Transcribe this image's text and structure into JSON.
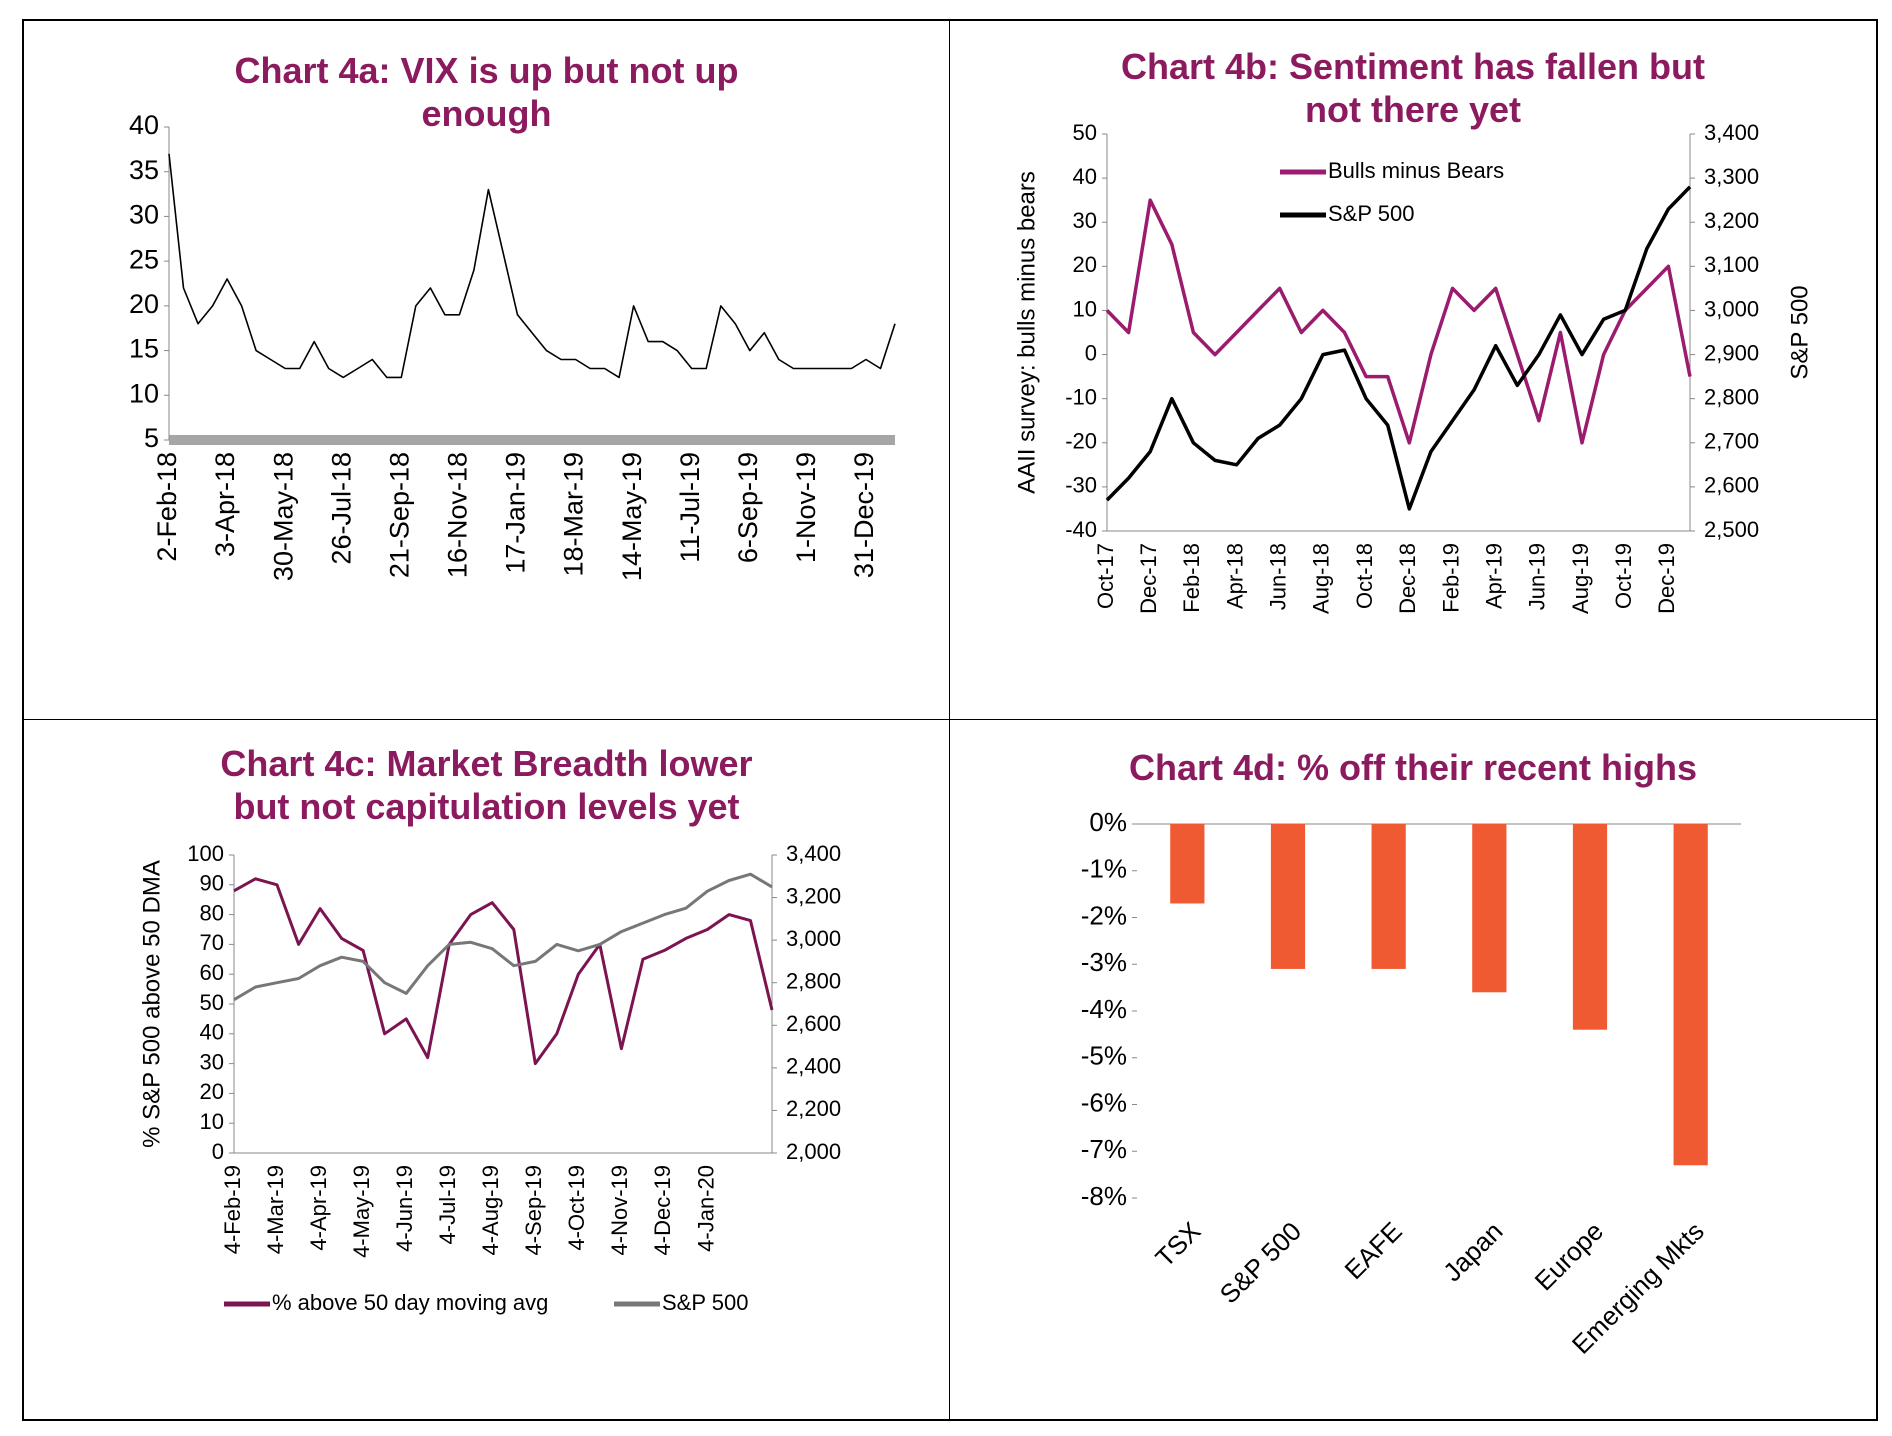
{
  "chart_data": [
    {
      "type": "line",
      "title": "Chart 4a: VIX is up but not up enough",
      "categories": [
        "2-Feb-18",
        null,
        null,
        null,
        "3-Apr-18",
        null,
        null,
        null,
        "30-May-18",
        null,
        null,
        null,
        "26-Jul-18",
        null,
        null,
        null,
        "21-Sep-18",
        null,
        null,
        null,
        "16-Nov-18",
        null,
        null,
        null,
        "17-Jan-19",
        null,
        null,
        null,
        "18-Mar-19",
        null,
        null,
        null,
        "14-May-19",
        null,
        null,
        null,
        "11-Jul-19",
        null,
        null,
        null,
        "6-Sep-19",
        null,
        null,
        null,
        "1-Nov-19",
        null,
        null,
        null,
        "31-Dec-19",
        null,
        null
      ],
      "values": [
        37,
        22,
        18,
        20,
        23,
        20,
        15,
        14,
        13,
        13,
        16,
        13,
        12,
        13,
        14,
        12,
        12,
        20,
        22,
        19,
        19,
        24,
        33,
        26,
        19,
        17,
        15,
        14,
        14,
        13,
        13,
        12,
        20,
        16,
        16,
        15,
        13,
        13,
        20,
        18,
        15,
        17,
        14,
        13,
        13,
        13,
        13,
        13,
        14,
        13,
        18
      ],
      "color": "#000000",
      "ylim": [
        5,
        40
      ],
      "yticks": [
        5,
        10,
        15,
        20,
        25,
        30,
        35,
        40
      ]
    },
    {
      "type": "line",
      "title": "Chart 4b: Sentiment has fallen but not there yet",
      "ylabel": "AAII survey: bulls minus bears",
      "y2label": "S&P 500",
      "categories": [
        "Oct-17",
        null,
        "Dec-17",
        null,
        "Feb-18",
        null,
        "Apr-18",
        null,
        "Jun-18",
        null,
        "Aug-18",
        null,
        "Oct-18",
        null,
        "Dec-18",
        null,
        "Feb-19",
        null,
        "Apr-19",
        null,
        "Jun-19",
        null,
        "Aug-19",
        null,
        "Oct-19",
        null,
        "Dec-19",
        null
      ],
      "series": [
        {
          "name": "Bulls minus Bears",
          "color": "#9b1b6e",
          "values": [
            10,
            5,
            35,
            25,
            5,
            0,
            5,
            10,
            15,
            5,
            10,
            5,
            -5,
            -5,
            -20,
            0,
            15,
            10,
            15,
            0,
            -15,
            5,
            -20,
            0,
            10,
            15,
            20,
            -5
          ]
        },
        {
          "name": "S&P 500",
          "color": "#000000",
          "axis": "y2",
          "values": [
            2570,
            2620,
            2680,
            2800,
            2700,
            2660,
            2650,
            2710,
            2740,
            2800,
            2900,
            2910,
            2800,
            2740,
            2550,
            2680,
            2750,
            2820,
            2920,
            2830,
            2900,
            2990,
            2900,
            2980,
            3000,
            3140,
            3230,
            3280
          ]
        }
      ],
      "ylim": [
        -40,
        50
      ],
      "yticks": [
        -40,
        -30,
        -20,
        -10,
        0,
        10,
        20,
        30,
        40,
        50
      ],
      "y2lim": [
        2500,
        3400
      ],
      "y2ticks": [
        {
          "value": 2500,
          "label": "2,500"
        },
        {
          "value": 2600,
          "label": "2,600"
        },
        {
          "value": 2700,
          "label": "2,700"
        },
        {
          "value": 2800,
          "label": "2,800"
        },
        {
          "value": 2900,
          "label": "2,900"
        },
        {
          "value": 3000,
          "label": "3,000"
        },
        {
          "value": 3100,
          "label": "3,100"
        },
        {
          "value": 3200,
          "label": "3,200"
        },
        {
          "value": 3300,
          "label": "3,300"
        },
        {
          "value": 3400,
          "label": "3,400"
        }
      ],
      "legend": "top"
    },
    {
      "type": "line",
      "title": "Chart 4c: Market Breadth lower but not capitulation levels yet",
      "ylabel": "% S&P 500 above 50 DMA",
      "categories": [
        "4-Feb-19",
        null,
        "4-Mar-19",
        null,
        "4-Apr-19",
        null,
        "4-May-19",
        null,
        "4-Jun-19",
        null,
        "4-Jul-19",
        null,
        "4-Aug-19",
        null,
        "4-Sep-19",
        null,
        "4-Oct-19",
        null,
        "4-Nov-19",
        null,
        "4-Dec-19",
        null,
        "4-Jan-20",
        null,
        null,
        null
      ],
      "series": [
        {
          "name": "% above 50 day moving avg",
          "color": "#7b1450",
          "values": [
            88,
            92,
            90,
            70,
            82,
            72,
            68,
            40,
            45,
            32,
            70,
            80,
            84,
            75,
            30,
            40,
            60,
            70,
            35,
            65,
            68,
            72,
            75,
            80,
            78,
            48
          ]
        },
        {
          "name": "S&P 500",
          "color": "#777777",
          "axis": "y2",
          "values": [
            2720,
            2780,
            2800,
            2820,
            2880,
            2920,
            2900,
            2800,
            2750,
            2880,
            2980,
            2990,
            2960,
            2880,
            2900,
            2980,
            2950,
            2980,
            3040,
            3080,
            3120,
            3150,
            3230,
            3280,
            3310,
            3250
          ]
        }
      ],
      "ylim": [
        0,
        100
      ],
      "yticks": [
        0,
        10,
        20,
        30,
        40,
        50,
        60,
        70,
        80,
        90,
        100
      ],
      "y2lim": [
        2000,
        3400
      ],
      "y2ticks": [
        {
          "value": 2000,
          "label": "2,000"
        },
        {
          "value": 2200,
          "label": "2,200"
        },
        {
          "value": 2400,
          "label": "2,400"
        },
        {
          "value": 2600,
          "label": "2,600"
        },
        {
          "value": 2800,
          "label": "2,800"
        },
        {
          "value": 3000,
          "label": "3,000"
        },
        {
          "value": 3200,
          "label": "3,200"
        },
        {
          "value": 3400,
          "label": "3,400"
        }
      ],
      "legend": "bottom"
    },
    {
      "type": "bar",
      "title": "Chart 4d: % off their recent highs",
      "categories": [
        "TSX",
        "S&P 500",
        "EAFE",
        "Japan",
        "Europe",
        "Emerging Mkts"
      ],
      "values": [
        -1.7,
        -3.1,
        -3.1,
        -3.6,
        -4.4,
        -7.3
      ],
      "color": "#f05a32",
      "ylim": [
        -8,
        0
      ],
      "yticks": [
        {
          "value": 0,
          "label": "0%"
        },
        {
          "value": -1,
          "label": "-1%"
        },
        {
          "value": -2,
          "label": "-2%"
        },
        {
          "value": -3,
          "label": "-3%"
        },
        {
          "value": -4,
          "label": "-4%"
        },
        {
          "value": -5,
          "label": "-5%"
        },
        {
          "value": -6,
          "label": "-6%"
        },
        {
          "value": -7,
          "label": "-7%"
        },
        {
          "value": -8,
          "label": "-8%"
        }
      ]
    }
  ]
}
